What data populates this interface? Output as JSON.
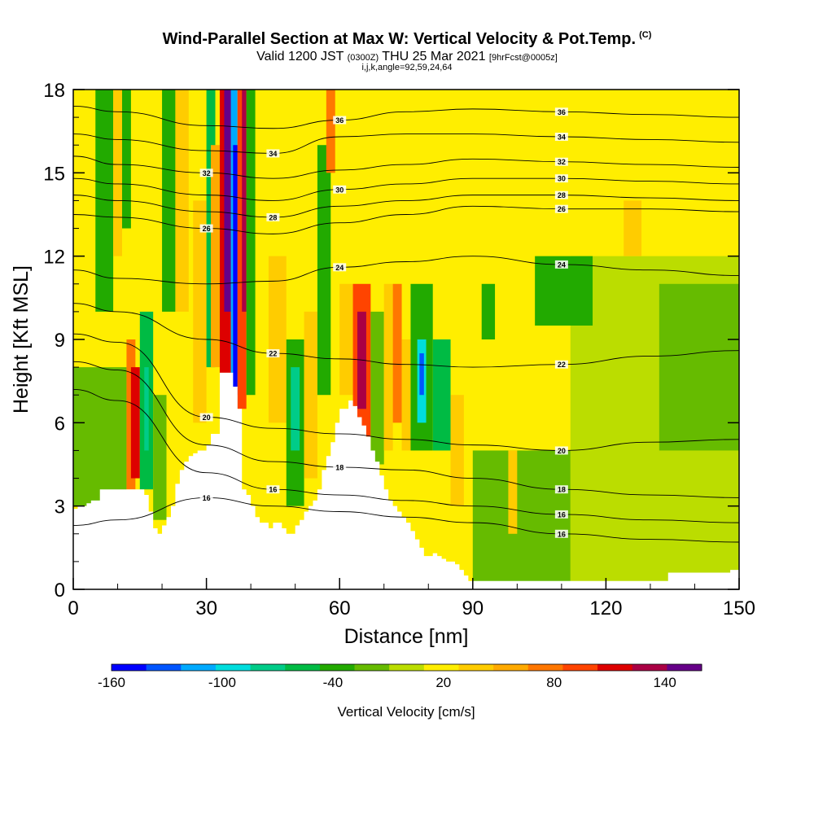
{
  "title": {
    "main": "Wind-Parallel Section at Max W: Vertical Velocity & Pot.Temp.",
    "copyright": "(C)",
    "valid_prefix": "Valid 1200 JST",
    "valid_zulu": "(0300Z)",
    "valid_date": "THU 25 Mar 2021",
    "forecast": "[9hrFcst@0005z]",
    "indices": "i,j,k,angle=92,59,24,64"
  },
  "chart_data": {
    "type": "heatmap",
    "xlabel": "Distance [nm]",
    "ylabel": "Height [Kft MSL]",
    "xlim": [
      0,
      150
    ],
    "ylim": [
      0,
      18
    ],
    "x_ticks": [
      "0",
      "30",
      "60",
      "90",
      "120",
      "150"
    ],
    "y_ticks": [
      "0",
      "3",
      "6",
      "9",
      "12",
      "15",
      "18"
    ],
    "terrain": {
      "x": [
        0,
        1,
        2,
        3,
        4,
        6,
        8,
        10,
        12,
        14,
        16,
        17,
        18,
        19,
        20,
        21,
        22,
        23,
        24,
        25,
        26,
        27,
        28,
        29,
        30,
        31,
        32,
        33,
        34,
        35,
        36,
        37,
        38,
        39,
        40,
        41,
        42,
        43,
        44,
        45,
        46,
        47,
        48,
        49,
        50,
        51,
        52,
        53,
        54,
        55,
        56,
        57,
        58,
        59,
        60,
        61,
        62,
        63,
        64,
        65,
        66,
        67,
        68,
        69,
        70,
        71,
        72,
        73,
        74,
        75,
        76,
        77,
        78,
        79,
        80,
        81,
        82,
        83,
        84,
        85,
        86,
        87,
        88,
        89,
        90,
        92,
        96,
        100,
        110,
        120,
        130,
        134,
        140,
        145,
        148,
        150
      ],
      "height": [
        2.9,
        3.0,
        3.0,
        3.1,
        3.2,
        3.6,
        3.6,
        3.6,
        3.6,
        3.6,
        3.4,
        2.8,
        2.2,
        2.0,
        2.3,
        2.6,
        3.0,
        3.8,
        4.3,
        4.6,
        4.8,
        4.9,
        5.0,
        5.0,
        5.2,
        5.6,
        5.6,
        7.8,
        7.8,
        7.8,
        7.3,
        6.5,
        3.6,
        3.4,
        3.0,
        2.6,
        2.4,
        2.4,
        2.2,
        2.4,
        2.4,
        2.2,
        2.0,
        2.0,
        2.3,
        2.5,
        2.8,
        3.0,
        3.2,
        3.6,
        4.3,
        4.8,
        5.3,
        6.0,
        6.5,
        6.5,
        6.8,
        6.6,
        6.2,
        5.9,
        5.5,
        5.0,
        4.6,
        4.1,
        3.6,
        3.2,
        3.0,
        2.8,
        2.6,
        2.4,
        2.1,
        1.8,
        1.5,
        1.2,
        1.2,
        1.3,
        1.2,
        1.1,
        1.0,
        1.0,
        0.9,
        0.7,
        0.5,
        0.3,
        0.3,
        0.3,
        0.3,
        0.3,
        0.3,
        0.3,
        0.3,
        0.6,
        0.6,
        0.6,
        0.7,
        0.9
      ]
    },
    "vertical_velocity_cells": [
      {
        "x": [
          0,
          150
        ],
        "y": [
          0,
          18
        ],
        "value": 15
      },
      {
        "x": [
          112,
          150
        ],
        "y": [
          0,
          12
        ],
        "value": 5
      },
      {
        "x": [
          0,
          12
        ],
        "y": [
          3,
          8
        ],
        "value": -10
      },
      {
        "x": [
          90,
          112
        ],
        "y": [
          0,
          5
        ],
        "value": -15
      },
      {
        "x": [
          132,
          150
        ],
        "y": [
          5,
          11
        ],
        "value": -10
      },
      {
        "x": [
          5,
          9
        ],
        "y": [
          10,
          18
        ],
        "value": -35
      },
      {
        "x": [
          12,
          14
        ],
        "y": [
          3.6,
          9
        ],
        "value": 75
      },
      {
        "x": [
          13,
          15
        ],
        "y": [
          4,
          8
        ],
        "value": 115
      },
      {
        "x": [
          15,
          18
        ],
        "y": [
          3.6,
          10
        ],
        "value": -55
      },
      {
        "x": [
          16,
          17
        ],
        "y": [
          5,
          8
        ],
        "value": -80
      },
      {
        "x": [
          18,
          21
        ],
        "y": [
          2.5,
          7
        ],
        "value": -25
      },
      {
        "x": [
          9,
          11
        ],
        "y": [
          12,
          18
        ],
        "value": 40
      },
      {
        "x": [
          11,
          13
        ],
        "y": [
          13,
          18
        ],
        "value": -40
      },
      {
        "x": [
          20,
          23
        ],
        "y": [
          10,
          18
        ],
        "value": -40
      },
      {
        "x": [
          23,
          26
        ],
        "y": [
          10,
          18
        ],
        "value": 40
      },
      {
        "x": [
          27,
          30
        ],
        "y": [
          6,
          14
        ],
        "value": 35
      },
      {
        "x": [
          30,
          32
        ],
        "y": [
          8,
          18
        ],
        "value": -55
      },
      {
        "x": [
          31,
          33
        ],
        "y": [
          8,
          16
        ],
        "value": 60
      },
      {
        "x": [
          33,
          35.5
        ],
        "y": [
          7.8,
          18
        ],
        "value": 110
      },
      {
        "x": [
          34,
          36
        ],
        "y": [
          10,
          18
        ],
        "value": 145
      },
      {
        "x": [
          35.5,
          37
        ],
        "y": [
          6.5,
          18
        ],
        "value": -115
      },
      {
        "x": [
          36,
          37
        ],
        "y": [
          7,
          16
        ],
        "value": -160
      },
      {
        "x": [
          37,
          39
        ],
        "y": [
          6.5,
          18
        ],
        "value": 95
      },
      {
        "x": [
          38,
          39
        ],
        "y": [
          10,
          18
        ],
        "value": 135
      },
      {
        "x": [
          39,
          41
        ],
        "y": [
          7,
          18
        ],
        "value": -35
      },
      {
        "x": [
          44,
          48
        ],
        "y": [
          6,
          12
        ],
        "value": 35
      },
      {
        "x": [
          48,
          52
        ],
        "y": [
          3,
          9
        ],
        "value": -45
      },
      {
        "x": [
          49,
          51
        ],
        "y": [
          5,
          8
        ],
        "value": -75
      },
      {
        "x": [
          52,
          55
        ],
        "y": [
          4,
          10
        ],
        "value": 35
      },
      {
        "x": [
          55,
          58
        ],
        "y": [
          7,
          16
        ],
        "value": -35
      },
      {
        "x": [
          57,
          59
        ],
        "y": [
          15,
          18
        ],
        "value": 70
      },
      {
        "x": [
          60,
          63
        ],
        "y": [
          7,
          11
        ],
        "value": 35
      },
      {
        "x": [
          63,
          67
        ],
        "y": [
          5.5,
          11
        ],
        "value": 85
      },
      {
        "x": [
          64,
          66
        ],
        "y": [
          6.5,
          10
        ],
        "value": 140
      },
      {
        "x": [
          67,
          70
        ],
        "y": [
          4.5,
          10
        ],
        "value": -15
      },
      {
        "x": [
          70,
          72
        ],
        "y": [
          5,
          11
        ],
        "value": 35
      },
      {
        "x": [
          72,
          74
        ],
        "y": [
          6,
          11
        ],
        "value": 75
      },
      {
        "x": [
          74,
          77
        ],
        "y": [
          5,
          9
        ],
        "value": 35
      },
      {
        "x": [
          76,
          81
        ],
        "y": [
          5,
          11
        ],
        "value": -45
      },
      {
        "x": [
          77.5,
          79.5
        ],
        "y": [
          6,
          9
        ],
        "value": -95
      },
      {
        "x": [
          78,
          79
        ],
        "y": [
          7,
          8.5
        ],
        "value": -130
      },
      {
        "x": [
          81,
          85
        ],
        "y": [
          5,
          9
        ],
        "value": -55
      },
      {
        "x": [
          85,
          88
        ],
        "y": [
          3,
          7
        ],
        "value": 30
      },
      {
        "x": [
          92,
          95
        ],
        "y": [
          9,
          11
        ],
        "value": -45
      },
      {
        "x": [
          104,
          117
        ],
        "y": [
          9.5,
          12
        ],
        "value": -45
      },
      {
        "x": [
          124,
          128
        ],
        "y": [
          12,
          14
        ],
        "value": 30
      },
      {
        "x": [
          98,
          100
        ],
        "y": [
          2,
          5
        ],
        "value": 30
      }
    ],
    "theta_contours": [
      {
        "label": "16",
        "y": [
          2.3,
          2.5,
          3.3,
          3.0,
          2.8,
          2.6,
          2.4,
          2.0,
          1.8,
          1.7
        ]
      },
      {
        "label": "16",
        "y": [
          7.2,
          6.8,
          4.2,
          3.6,
          3.4,
          3.2,
          3.0,
          2.7,
          2.5,
          2.4
        ]
      },
      {
        "label": "18",
        "y": [
          8.2,
          7.9,
          5.2,
          4.6,
          4.4,
          4.3,
          4.0,
          3.6,
          3.4,
          3.3
        ]
      },
      {
        "label": "20",
        "y": [
          9.2,
          8.9,
          6.2,
          5.8,
          5.6,
          5.4,
          5.2,
          5.0,
          5.3,
          5.4
        ]
      },
      {
        "label": "22",
        "y": [
          10.3,
          10.0,
          9.0,
          8.5,
          8.3,
          8.1,
          8.0,
          8.1,
          8.4,
          8.6
        ]
      },
      {
        "label": "24",
        "y": [
          11.5,
          11.2,
          11.0,
          11.1,
          11.6,
          11.8,
          12.0,
          11.7,
          11.5,
          11.3
        ]
      },
      {
        "label": "26",
        "y": [
          13.5,
          13.4,
          13.0,
          12.8,
          13.2,
          13.5,
          13.8,
          13.7,
          13.7,
          13.6
        ]
      },
      {
        "label": "28",
        "y": [
          14.2,
          14.0,
          13.6,
          13.4,
          13.8,
          14.0,
          14.2,
          14.2,
          14.1,
          14.0
        ]
      },
      {
        "label": "30",
        "y": [
          14.8,
          14.6,
          14.2,
          14.0,
          14.4,
          14.6,
          14.8,
          14.8,
          14.7,
          14.6
        ]
      },
      {
        "label": "32",
        "y": [
          15.6,
          15.3,
          15.0,
          14.8,
          15.1,
          15.3,
          15.5,
          15.4,
          15.3,
          15.2
        ]
      },
      {
        "label": "34",
        "y": [
          16.4,
          16.2,
          15.8,
          15.7,
          16.3,
          16.4,
          16.4,
          16.3,
          16.2,
          16.1
        ]
      },
      {
        "label": "36",
        "y": [
          17.4,
          17.2,
          16.7,
          16.6,
          16.9,
          17.2,
          17.3,
          17.2,
          17.1,
          17.0
        ]
      }
    ],
    "contour_x": [
      0,
      10,
      30,
      45,
      60,
      75,
      90,
      110,
      130,
      150
    ],
    "colorbar": {
      "label": "Vertical Velocity [cm/s]",
      "range": [
        -160,
        160
      ],
      "tick_labels": [
        "-160",
        "-100",
        "-40",
        "20",
        "80",
        "140"
      ],
      "tick_values": [
        -160,
        -100,
        -40,
        20,
        80,
        140
      ],
      "colors": [
        "#0000ff",
        "#0055ff",
        "#00aaff",
        "#00dddd",
        "#00cc88",
        "#00bb44",
        "#22aa00",
        "#66bb00",
        "#bbdd00",
        "#ffee00",
        "#ffcc00",
        "#ffaa00",
        "#ff7700",
        "#ff4400",
        "#dd0000",
        "#aa0044",
        "#660088"
      ]
    }
  }
}
